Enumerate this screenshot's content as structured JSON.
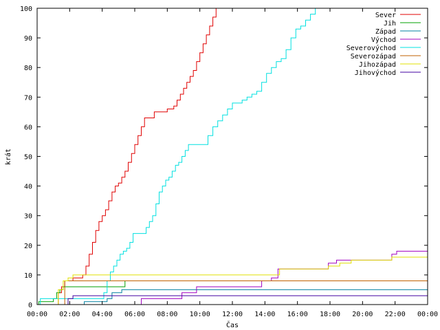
{
  "chart_data": {
    "type": "line",
    "title": "",
    "xlabel": "Čas",
    "ylabel": "krát",
    "xlim": [
      0,
      24
    ],
    "ylim": [
      0,
      100
    ],
    "x_ticks": [
      {
        "value": 0,
        "label": "00:00"
      },
      {
        "value": 2,
        "label": "02:00"
      },
      {
        "value": 4,
        "label": "04:00"
      },
      {
        "value": 6,
        "label": "06:00"
      },
      {
        "value": 8,
        "label": "08:00"
      },
      {
        "value": 10,
        "label": "10:00"
      },
      {
        "value": 12,
        "label": "12:00"
      },
      {
        "value": 14,
        "label": "14:00"
      },
      {
        "value": 16,
        "label": "16:00"
      },
      {
        "value": 18,
        "label": "18:00"
      },
      {
        "value": 20,
        "label": "20:00"
      },
      {
        "value": 22,
        "label": "22:00"
      },
      {
        "value": 24,
        "label": "00:00"
      }
    ],
    "y_ticks": [
      0,
      10,
      20,
      30,
      40,
      50,
      60,
      70,
      80,
      90,
      100
    ],
    "grid": false,
    "legend_position": "top-right",
    "series": [
      {
        "name": "Sever",
        "color": "#e00000",
        "x": [
          0,
          1.1,
          1.3,
          1.5,
          1.7,
          2.2,
          2.8,
          3.0,
          3.2,
          3.4,
          3.6,
          3.8,
          4.0,
          4.2,
          4.4,
          4.6,
          4.8,
          5.0,
          5.2,
          5.4,
          5.6,
          5.8,
          6.0,
          6.2,
          6.4,
          6.6,
          6.8,
          7.0,
          7.2,
          7.6,
          8.0,
          8.4,
          8.6,
          8.8,
          9.0,
          9.2,
          9.4,
          9.6,
          9.8,
          10.0,
          10.2,
          10.4,
          10.6,
          10.8,
          11.0
        ],
        "y": [
          0,
          0,
          4,
          6,
          8,
          9,
          10,
          13,
          17,
          21,
          25,
          28,
          30,
          32,
          35,
          38,
          40,
          41,
          43,
          45,
          48,
          51,
          54,
          57,
          60,
          63,
          63,
          63,
          65,
          65,
          66,
          67,
          69,
          71,
          73,
          75,
          77,
          79,
          82,
          85,
          88,
          91,
          94,
          97,
          100
        ]
      },
      {
        "name": "Jih",
        "color": "#00a000",
        "x": [
          0,
          0.1,
          1.0,
          1.2,
          1.4,
          1.6,
          5.4,
          24
        ],
        "y": [
          0,
          1,
          2,
          4,
          5,
          6,
          8,
          8
        ]
      },
      {
        "name": "Západ",
        "color": "#0080a0",
        "x": [
          0,
          2.9,
          4.3,
          4.6,
          5.2,
          24
        ],
        "y": [
          0,
          1,
          2,
          4,
          5,
          5
        ]
      },
      {
        "name": "Východ",
        "color": "#a000c0",
        "x": [
          0,
          6.2,
          6.4,
          8.6,
          8.9,
          9.8,
          11.4,
          13.8,
          14.4,
          14.8,
          17.2,
          17.9,
          18.4,
          19.8,
          21.8,
          22.1,
          24
        ],
        "y": [
          0,
          0,
          2,
          2,
          4,
          6,
          6,
          8,
          9,
          12,
          12,
          14,
          15,
          15,
          17,
          18,
          18
        ]
      },
      {
        "name": "Severovýchod",
        "color": "#00e0e0",
        "x": [
          0,
          0.2,
          3.9,
          4.1,
          4.3,
          4.5,
          4.7,
          4.9,
          5.1,
          5.3,
          5.5,
          5.7,
          5.9,
          6.1,
          6.3,
          6.5,
          6.7,
          6.9,
          7.1,
          7.3,
          7.5,
          7.7,
          7.9,
          8.1,
          8.3,
          8.5,
          8.7,
          8.9,
          9.1,
          9.3,
          9.5,
          10.5,
          10.8,
          11.1,
          11.4,
          11.7,
          12.0,
          12.3,
          12.6,
          12.9,
          13.2,
          13.5,
          13.8,
          14.1,
          14.4,
          14.7,
          15.0,
          15.3,
          15.6,
          15.9,
          16.2,
          16.5,
          16.8,
          17.1
        ],
        "y": [
          0,
          2,
          2,
          4,
          8,
          11,
          13,
          15,
          17,
          18,
          19,
          21,
          24,
          24,
          24,
          24,
          26,
          28,
          30,
          34,
          38,
          40,
          42,
          43,
          45,
          47,
          48,
          50,
          52,
          54,
          54,
          57,
          60,
          62,
          64,
          66,
          68,
          68,
          69,
          70,
          71,
          72,
          75,
          78,
          80,
          82,
          83,
          86,
          90,
          93,
          94,
          96,
          98,
          100
        ]
      },
      {
        "name": "Severozápad",
        "color": "#c06000",
        "x": [
          0,
          1.7,
          24
        ],
        "y": [
          0,
          8,
          8
        ]
      },
      {
        "name": "Jihozápad",
        "color": "#e0e000",
        "x": [
          0,
          1.3,
          1.6,
          1.9,
          2.2,
          13.3,
          14.9,
          17.9,
          18.6,
          19.3,
          21.8,
          24
        ],
        "y": [
          0,
          5,
          8,
          9,
          10,
          10,
          12,
          13,
          14,
          15,
          16,
          17
        ]
      },
      {
        "name": "Jihovýchod",
        "color": "#4000a0",
        "x": [
          0,
          1.9,
          2.2,
          24
        ],
        "y": [
          0,
          2,
          3,
          3
        ]
      }
    ]
  }
}
